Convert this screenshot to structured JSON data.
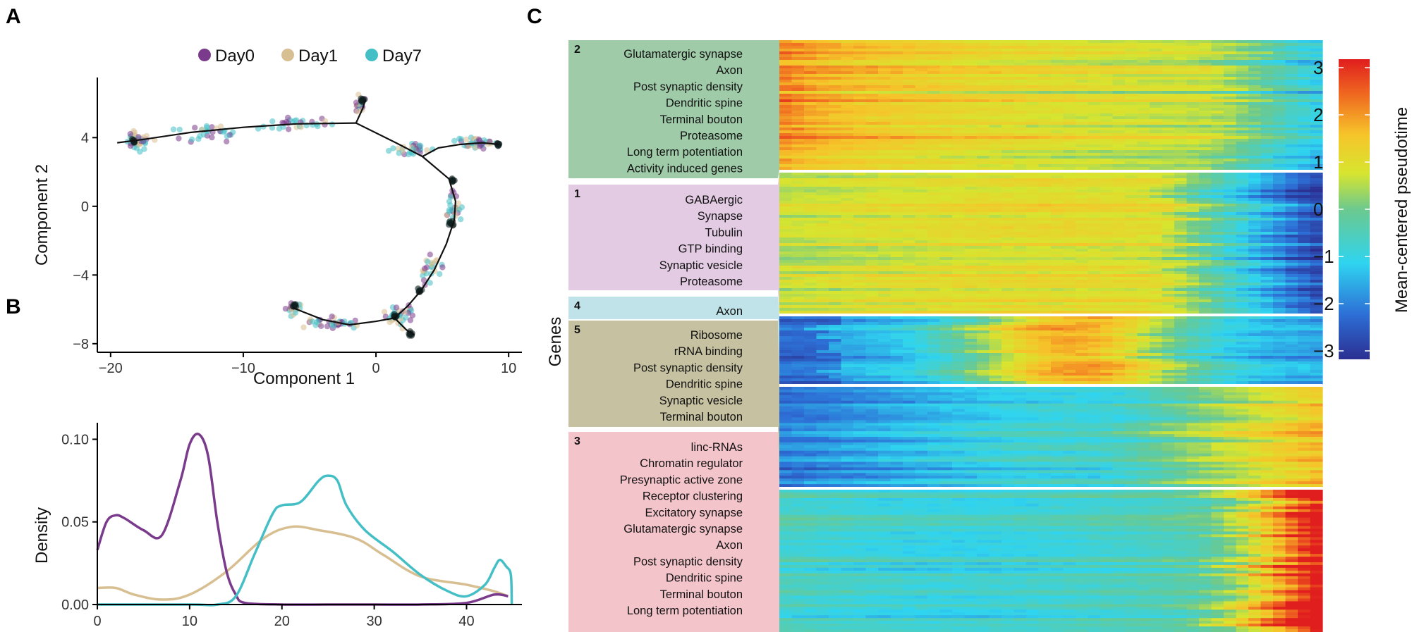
{
  "panels": {
    "a": "A",
    "b": "B",
    "c": "C"
  },
  "colors": {
    "Day0": "#7b3b8c",
    "Day1": "#d8bf92",
    "Day7": "#45bfc6",
    "trajectory": "#111111"
  },
  "chart_data": [
    {
      "id": "A",
      "type": "scatter",
      "xlabel": "Component 1",
      "ylabel": "Component 2",
      "xlim": [
        -21,
        11
      ],
      "ylim": [
        -8.5,
        7.5
      ],
      "xticks": [
        -20,
        -10,
        0,
        10
      ],
      "xtick_labels": [
        "−20",
        "−10",
        "0",
        "10"
      ],
      "yticks": [
        -8,
        -4,
        0,
        4
      ],
      "ytick_labels": [
        "−8",
        "−4",
        "0",
        "4"
      ],
      "legend": [
        "Day0",
        "Day1",
        "Day7"
      ],
      "legend_position": "top",
      "trajectory": [
        {
          "name": "left-branch",
          "points": [
            [
              -19.5,
              3.7
            ],
            [
              -17.5,
              3.9
            ],
            [
              -14,
              4.3
            ],
            [
              -10,
              4.6
            ],
            [
              -6,
              4.8
            ],
            [
              -1.5,
              4.85
            ]
          ]
        },
        {
          "name": "top-branch",
          "points": [
            [
              -1.5,
              4.85
            ],
            [
              -1.0,
              5.7
            ],
            [
              -0.8,
              6.2
            ]
          ]
        },
        {
          "name": "main-branch",
          "points": [
            [
              -1.5,
              4.85
            ],
            [
              1.5,
              3.7
            ],
            [
              3.5,
              2.9
            ],
            [
              5.5,
              1.6
            ],
            [
              6.0,
              0.3
            ],
            [
              5.9,
              -0.8
            ],
            [
              5.3,
              -2.2
            ],
            [
              4.4,
              -3.7
            ],
            [
              3.4,
              -4.9
            ],
            [
              2.4,
              -5.8
            ],
            [
              1.4,
              -6.5
            ],
            [
              0,
              -6.7
            ],
            [
              -2,
              -6.9
            ],
            [
              -4,
              -6.6
            ],
            [
              -6.3,
              -5.9
            ]
          ]
        },
        {
          "name": "right-branch",
          "points": [
            [
              3.5,
              2.9
            ],
            [
              4.7,
              3.4
            ],
            [
              6.3,
              3.6
            ],
            [
              8,
              3.7
            ],
            [
              9.3,
              3.6
            ]
          ]
        },
        {
          "name": "lower-branch",
          "points": [
            [
              1.4,
              -6.5
            ],
            [
              2.3,
              -7.2
            ],
            [
              2.9,
              -7.5
            ]
          ]
        }
      ],
      "point_clusters": [
        {
          "center": [
            -18,
            3.8
          ],
          "count": 40,
          "spread": [
            0.9,
            0.45
          ]
        },
        {
          "center": [
            -13,
            4.3
          ],
          "count": 30,
          "spread": [
            2.2,
            0.4
          ]
        },
        {
          "center": [
            -6,
            4.8
          ],
          "count": 30,
          "spread": [
            2.5,
            0.3
          ]
        },
        {
          "center": [
            -1.2,
            5.9
          ],
          "count": 15,
          "spread": [
            0.5,
            0.6
          ]
        },
        {
          "center": [
            2.5,
            3.3
          ],
          "count": 30,
          "spread": [
            1.6,
            0.4
          ]
        },
        {
          "center": [
            7.5,
            3.7
          ],
          "count": 40,
          "spread": [
            1.4,
            0.3
          ]
        },
        {
          "center": [
            5.8,
            -0.2
          ],
          "count": 30,
          "spread": [
            0.5,
            1.3
          ]
        },
        {
          "center": [
            4.2,
            -3.6
          ],
          "count": 25,
          "spread": [
            0.8,
            0.9
          ]
        },
        {
          "center": [
            1.8,
            -6.4
          ],
          "count": 35,
          "spread": [
            1.0,
            0.7
          ]
        },
        {
          "center": [
            -3,
            -6.8
          ],
          "count": 40,
          "spread": [
            2.3,
            0.3
          ]
        },
        {
          "center": [
            -6.2,
            -5.9
          ],
          "count": 20,
          "spread": [
            0.6,
            0.4
          ]
        }
      ]
    },
    {
      "id": "B",
      "type": "line",
      "ylabel": "Density",
      "xlim": [
        0,
        46
      ],
      "ylim": [
        0,
        0.11
      ],
      "xticks": [
        0,
        10,
        20,
        30,
        40
      ],
      "xtick_labels": [
        "0",
        "10",
        "20",
        "30",
        "40"
      ],
      "yticks": [
        0,
        0.05,
        0.1
      ],
      "ytick_labels": [
        "0.00",
        "0.05",
        "0.10"
      ],
      "series": [
        {
          "name": "Day1",
          "points": [
            [
              0,
              0.01
            ],
            [
              2,
              0.01
            ],
            [
              4,
              0.006
            ],
            [
              7,
              0.003
            ],
            [
              10,
              0.006
            ],
            [
              14,
              0.02
            ],
            [
              18,
              0.04
            ],
            [
              21,
              0.047
            ],
            [
              24,
              0.045
            ],
            [
              28,
              0.04
            ],
            [
              31,
              0.03
            ],
            [
              35,
              0.017
            ],
            [
              40,
              0.012
            ],
            [
              43,
              0.008
            ],
            [
              44.5,
              0.005
            ]
          ]
        },
        {
          "name": "Day0",
          "points": [
            [
              0,
              0.033
            ],
            [
              1,
              0.05
            ],
            [
              2,
              0.054
            ],
            [
              3,
              0.052
            ],
            [
              5,
              0.045
            ],
            [
              7,
              0.042
            ],
            [
              9,
              0.075
            ],
            [
              10,
              0.097
            ],
            [
              11,
              0.103
            ],
            [
              12,
              0.09
            ],
            [
              13,
              0.05
            ],
            [
              14,
              0.02
            ],
            [
              15,
              0.006
            ],
            [
              16,
              0.001
            ],
            [
              20,
              0.0
            ],
            [
              25,
              0.0
            ],
            [
              30,
              0.0
            ],
            [
              35,
              0.0
            ],
            [
              40,
              0.001
            ],
            [
              43,
              0.006
            ],
            [
              44.5,
              0.005
            ]
          ]
        },
        {
          "name": "Day7",
          "points": [
            [
              0,
              0.0
            ],
            [
              10,
              0.0
            ],
            [
              13,
              0.0
            ],
            [
              15,
              0.005
            ],
            [
              17,
              0.03
            ],
            [
              19,
              0.055
            ],
            [
              20,
              0.06
            ],
            [
              22,
              0.062
            ],
            [
              24,
              0.075
            ],
            [
              25,
              0.078
            ],
            [
              26,
              0.075
            ],
            [
              27,
              0.06
            ],
            [
              29,
              0.045
            ],
            [
              32,
              0.032
            ],
            [
              35,
              0.018
            ],
            [
              38,
              0.008
            ],
            [
              40,
              0.005
            ],
            [
              42,
              0.012
            ],
            [
              43,
              0.022
            ],
            [
              43.6,
              0.027
            ],
            [
              44.3,
              0.023
            ],
            [
              44.8,
              0.018
            ],
            [
              44.9,
              0.0
            ]
          ]
        }
      ]
    },
    {
      "id": "C",
      "type": "heatmap",
      "ylabel": "Genes",
      "colorbar_label": "Mean-centered pseudotime",
      "colorbar_range": [
        -3,
        3
      ],
      "colorbar_ticks": [
        "3",
        "2",
        "1",
        "0",
        "−1",
        "−2",
        "−3"
      ],
      "clusters": [
        {
          "id": "2",
          "color": "#9fcba9",
          "terms": [
            "Glutamatergic synapse",
            "Axon",
            "Post synaptic density",
            "Dendritic spine",
            "Terminal bouton",
            "Proteasome",
            "Long term potentiation",
            "Activity induced genes"
          ],
          "heat_rows": 0.22,
          "pattern": "early-high"
        },
        {
          "id": "1",
          "color": "#e3cbe3",
          "terms": [
            "GABAergic",
            "Synapse",
            "Tubulin",
            "GTP binding",
            "Synaptic vesicle",
            "Proteasome"
          ],
          "heat_rows": 0.24,
          "pattern": "mid-high-late-low"
        },
        {
          "id": "4",
          "color": "#bfe3e8",
          "terms": [
            "Axon"
          ],
          "heat_rows": 0.14,
          "pattern": "mid-peak"
        },
        {
          "id": "5",
          "color": "#c6c2a1",
          "terms": [
            "Ribosome",
            "rRNA binding",
            "Post synaptic density",
            "Dendritic spine",
            "Synaptic vesicle",
            "Terminal bouton"
          ],
          "heat_rows": 0.17,
          "pattern": "late-rise"
        },
        {
          "id": "3",
          "color": "#f4c4cb",
          "terms": [
            "linc-RNAs",
            "Chromatin regulator",
            "Presynaptic active zone",
            "Receptor clustering",
            "Excitatory synapse",
            "Glutamatergic synapse",
            "Axon",
            "Post synaptic density",
            "Dendritic spine",
            "Terminal bouton",
            "Long term potentiation"
          ],
          "heat_rows": 0.23,
          "pattern": "late-high"
        }
      ]
    }
  ]
}
